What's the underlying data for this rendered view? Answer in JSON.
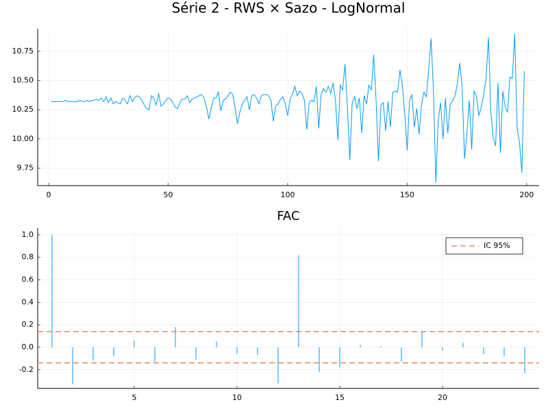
{
  "chart_data": [
    {
      "type": "line",
      "title": "Série 2 - RWS × Sazo - LogNormal",
      "color": "#009af9",
      "grid": true,
      "x": [
        1,
        2,
        3,
        4,
        5,
        6,
        7,
        8,
        9,
        10,
        11,
        12,
        13,
        14,
        15,
        16,
        17,
        18,
        19,
        20,
        21,
        22,
        23,
        24,
        25,
        26,
        27,
        28,
        29,
        30,
        31,
        32,
        33,
        34,
        35,
        36,
        37,
        38,
        39,
        40,
        41,
        42,
        43,
        44,
        45,
        46,
        47,
        48,
        49,
        50,
        51,
        52,
        53,
        54,
        55,
        56,
        57,
        58,
        59,
        60,
        61,
        62,
        63,
        64,
        65,
        66,
        67,
        68,
        69,
        70,
        71,
        72,
        73,
        74,
        75,
        76,
        77,
        78,
        79,
        80,
        81,
        82,
        83,
        84,
        85,
        86,
        87,
        88,
        89,
        90,
        91,
        92,
        93,
        94,
        95,
        96,
        97,
        98,
        99,
        100,
        101,
        102,
        103,
        104,
        105,
        106,
        107,
        108,
        109,
        110,
        111,
        112,
        113,
        114,
        115,
        116,
        117,
        118,
        119,
        120,
        121,
        122,
        123,
        124,
        125,
        126,
        127,
        128,
        129,
        130,
        131,
        132,
        133,
        134,
        135,
        136,
        137,
        138,
        139,
        140,
        141,
        142,
        143,
        144,
        145,
        146,
        147,
        148,
        149,
        150,
        151,
        152,
        153,
        154,
        155,
        156,
        157,
        158,
        159,
        160,
        161,
        162,
        163,
        164,
        165,
        166,
        167,
        168,
        169,
        170,
        171,
        172,
        173,
        174,
        175,
        176,
        177,
        178,
        179,
        180,
        181,
        182,
        183,
        184,
        185,
        186,
        187,
        188,
        189,
        190,
        191,
        192,
        193,
        194,
        195,
        196,
        197,
        198,
        199
      ],
      "values": [
        10.32,
        10.32,
        10.32,
        10.32,
        10.32,
        10.32,
        10.33,
        10.32,
        10.32,
        10.32,
        10.32,
        10.32,
        10.33,
        10.32,
        10.32,
        10.33,
        10.32,
        10.33,
        10.33,
        10.34,
        10.33,
        10.35,
        10.32,
        10.36,
        10.31,
        10.35,
        10.3,
        10.32,
        10.31,
        10.3,
        10.35,
        10.33,
        10.3,
        10.37,
        10.32,
        10.35,
        10.37,
        10.36,
        10.33,
        10.29,
        10.26,
        10.25,
        10.37,
        10.35,
        10.29,
        10.39,
        10.28,
        10.3,
        10.33,
        10.35,
        10.34,
        10.31,
        10.27,
        10.26,
        10.32,
        10.34,
        10.34,
        10.37,
        10.31,
        10.34,
        10.35,
        10.36,
        10.37,
        10.38,
        10.35,
        10.28,
        10.17,
        10.26,
        10.35,
        10.35,
        10.4,
        10.24,
        10.33,
        10.34,
        10.37,
        10.4,
        10.38,
        10.27,
        10.13,
        10.23,
        10.3,
        10.33,
        10.36,
        10.25,
        10.37,
        10.38,
        10.35,
        10.3,
        10.37,
        10.38,
        10.38,
        10.37,
        10.33,
        10.15,
        10.28,
        10.3,
        10.34,
        10.36,
        10.3,
        10.2,
        10.34,
        10.38,
        10.45,
        10.37,
        10.41,
        10.39,
        10.33,
        10.08,
        10.31,
        10.33,
        10.32,
        10.45,
        10.09,
        10.38,
        10.43,
        10.4,
        10.45,
        10.39,
        10.48,
        10.33,
        9.99,
        10.46,
        10.42,
        10.64,
        10.27,
        9.82,
        10.31,
        10.36,
        10.26,
        10.35,
        10.05,
        10.37,
        10.3,
        10.46,
        10.42,
        10.72,
        10.33,
        9.81,
        10.29,
        10.31,
        10.07,
        10.32,
        10.1,
        10.4,
        10.41,
        10.4,
        10.59,
        10.46,
        10.21,
        9.9,
        10.33,
        10.38,
        10.1,
        10.26,
        10.04,
        10.29,
        10.4,
        10.36,
        10.59,
        10.86,
        10.41,
        9.63,
        10.16,
        10.31,
        10.0,
        10.35,
        10.05,
        10.3,
        10.32,
        10.37,
        10.47,
        10.65,
        10.44,
        9.83,
        10.05,
        10.33,
        9.91,
        10.41,
        10.37,
        10.2,
        10.27,
        10.38,
        10.51,
        10.87,
        10.24,
        10.01,
        9.94,
        10.48,
        9.88,
        10.41,
        10.27,
        10.23,
        10.53,
        10.52,
        10.9,
        10.09,
        9.97,
        9.71,
        10.58
      ],
      "xlim": [
        -4.6,
        205.2
      ],
      "xticks": [
        0,
        50,
        100,
        150,
        200
      ],
      "ylim": [
        9.6,
        10.943
      ],
      "yticks": [
        9.75,
        {
          "value": 10.0,
          "label": "10.00"
        },
        10.25,
        {
          "value": 10.5,
          "label": "10.50"
        },
        10.75
      ]
    },
    {
      "type": "stem",
      "title": "FAC",
      "color": "#009af9",
      "grid": true,
      "x": [
        1,
        2,
        3,
        4,
        5,
        6,
        7,
        8,
        9,
        10,
        11,
        12,
        13,
        14,
        15,
        16,
        17,
        18,
        19,
        20,
        21,
        22,
        23,
        24
      ],
      "values": [
        1.0,
        -0.33,
        -0.12,
        -0.08,
        0.06,
        -0.13,
        0.18,
        -0.11,
        0.05,
        -0.06,
        -0.07,
        -0.32,
        0.82,
        -0.22,
        -0.18,
        0.02,
        0.01,
        -0.13,
        0.14,
        -0.03,
        0.04,
        -0.06,
        -0.08,
        -0.23
      ],
      "hlines": {
        "name": "IC 95%",
        "color": "#e26f46",
        "values": [
          0.139,
          -0.139
        ]
      },
      "legend": "top-right",
      "xlim": [
        0.3,
        24.7
      ],
      "xticks": [
        5,
        10,
        15,
        20
      ],
      "ylim": [
        -0.366,
        1.06
      ],
      "yticks": [
        -0.2,
        {
          "value": 0.0,
          "label": "0.0"
        },
        0.2,
        0.4,
        0.6,
        0.8,
        {
          "value": 1.0,
          "label": "1.0"
        }
      ]
    }
  ]
}
